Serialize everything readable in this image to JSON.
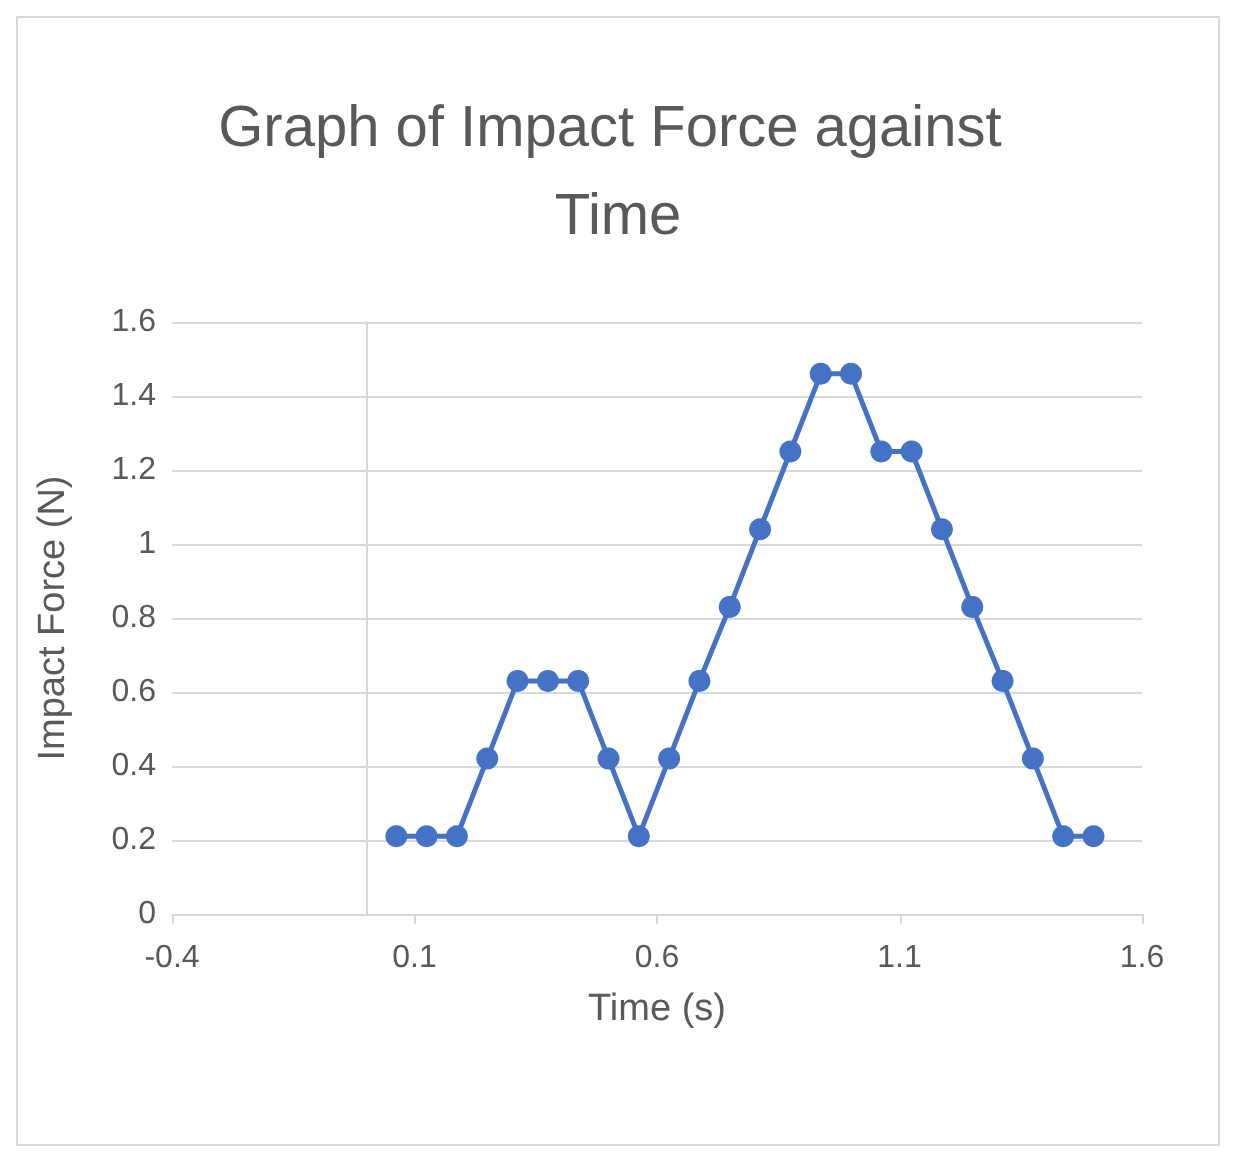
{
  "chart_data": {
    "type": "line",
    "title": "Graph of Impact Force against Time",
    "xlabel": "Time (s)",
    "ylabel": "Impact Force (N)",
    "x": [
      0.0625,
      0.125,
      0.1875,
      0.25,
      0.3125,
      0.375,
      0.4375,
      0.5,
      0.5625,
      0.625,
      0.6875,
      0.75,
      0.8125,
      0.875,
      0.9375,
      1.0,
      1.0625,
      1.125,
      1.1875,
      1.25,
      1.3125,
      1.375,
      1.4375,
      1.5
    ],
    "series": [
      {
        "color": "#4472c4",
        "values": [
          0.21,
          0.21,
          0.21,
          0.42,
          0.63,
          0.63,
          0.63,
          0.42,
          0.21,
          0.42,
          0.63,
          0.83,
          1.04,
          1.25,
          1.46,
          1.46,
          1.25,
          1.25,
          1.04,
          0.83,
          0.63,
          0.42,
          0.21,
          0.21
        ]
      }
    ],
    "xlim": [
      -0.4,
      1.6
    ],
    "xticks": [
      -0.4,
      0.1,
      0.6,
      1.1,
      1.6
    ],
    "ylim": [
      0,
      1.6
    ],
    "yticks": [
      0,
      0.2,
      0.4,
      0.6,
      0.8,
      1,
      1.2,
      1.4,
      1.6
    ],
    "grid": "y",
    "marker": "circle",
    "line_style": "solid"
  }
}
